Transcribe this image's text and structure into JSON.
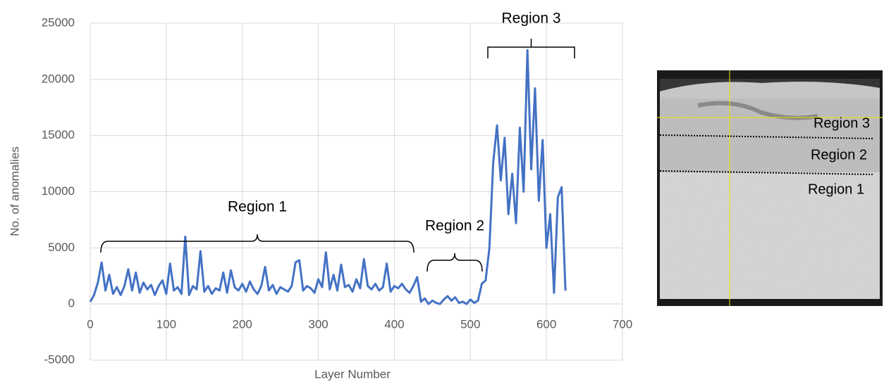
{
  "chart_data": {
    "type": "line",
    "x_label": "Layer Number",
    "y_label": "No. of anomalies",
    "xlim": [
      0,
      700
    ],
    "xticks": [
      0,
      100,
      200,
      300,
      400,
      500,
      600,
      700
    ],
    "ylim": [
      -5000,
      25000
    ],
    "yticks": [
      -5000,
      0,
      5000,
      10000,
      15000,
      20000,
      25000
    ],
    "grid": true,
    "annotations": [
      "Region 1",
      "Region 2",
      "Region 3"
    ],
    "x": [
      0,
      5,
      10,
      15,
      20,
      25,
      30,
      35,
      40,
      45,
      50,
      55,
      60,
      65,
      70,
      75,
      80,
      85,
      90,
      95,
      100,
      105,
      110,
      115,
      120,
      125,
      130,
      135,
      140,
      145,
      150,
      155,
      160,
      165,
      170,
      175,
      180,
      185,
      190,
      195,
      200,
      205,
      210,
      215,
      220,
      225,
      230,
      235,
      240,
      245,
      250,
      255,
      260,
      265,
      270,
      275,
      280,
      285,
      290,
      295,
      300,
      305,
      310,
      315,
      320,
      325,
      330,
      335,
      340,
      345,
      350,
      355,
      360,
      365,
      370,
      375,
      380,
      385,
      390,
      395,
      400,
      405,
      410,
      415,
      420,
      425,
      430,
      435,
      440,
      445,
      450,
      455,
      460,
      465,
      470,
      475,
      480,
      485,
      490,
      495,
      500,
      505,
      510,
      515,
      520,
      525,
      530,
      535,
      540,
      545,
      550,
      555,
      560,
      565,
      570,
      575,
      580,
      585,
      590,
      595,
      600,
      605,
      610,
      615,
      620,
      625
    ],
    "series": [
      {
        "color": "#4472c4",
        "values": [
          200,
          800,
          1900,
          3700,
          1200,
          2600,
          900,
          1500,
          800,
          1600,
          3100,
          1200,
          2800,
          1000,
          1900,
          1300,
          1700,
          800,
          1600,
          2100,
          900,
          3600,
          1200,
          1500,
          900,
          6000,
          800,
          1600,
          1300,
          4700,
          1100,
          1600,
          900,
          1400,
          1200,
          2800,
          1000,
          3000,
          1500,
          1200,
          1800,
          1100,
          2000,
          1300,
          900,
          1600,
          3300,
          1200,
          1700,
          900,
          1500,
          1300,
          1100,
          1600,
          3700,
          3900,
          1200,
          1600,
          1400,
          1000,
          2200,
          1500,
          4600,
          1300,
          2600,
          1200,
          3500,
          1500,
          1700,
          1100,
          2200,
          1400,
          4000,
          1600,
          1300,
          1800,
          1200,
          1500,
          3600,
          1100,
          1600,
          1400,
          1800,
          1300,
          1000,
          1600,
          2400,
          200,
          500,
          0,
          300,
          100,
          0,
          400,
          700,
          300,
          600,
          100,
          200,
          0,
          400,
          100,
          300,
          1800,
          2100,
          5000,
          12600,
          15900,
          11000,
          14800,
          8000,
          11600,
          7200,
          15700,
          10000,
          22600,
          12000,
          19200,
          9200,
          14600,
          5000,
          8000,
          1000,
          9500,
          10400,
          1200
        ]
      }
    ]
  },
  "image": {
    "labels": [
      "Region 3",
      "Region 2",
      "Region 1"
    ]
  }
}
